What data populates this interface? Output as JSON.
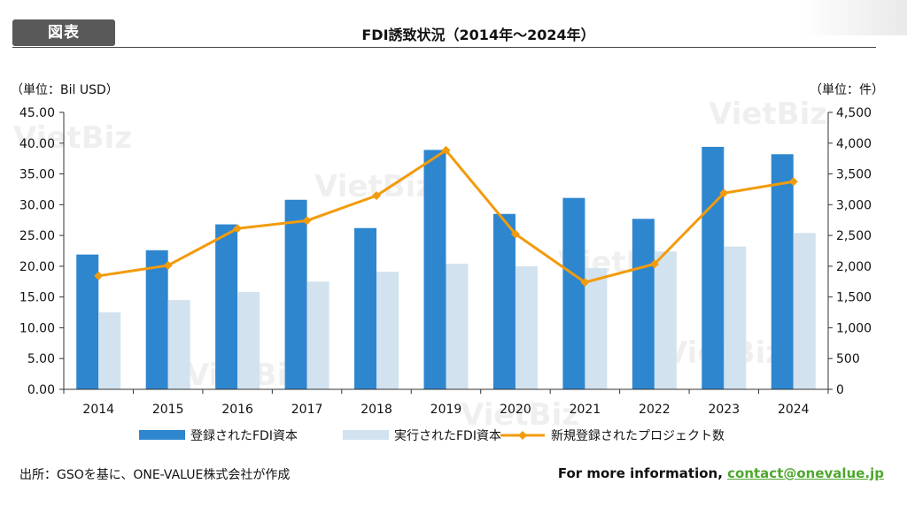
{
  "badge": "図表",
  "title": "FDI誘致状況（2014年～2024年）",
  "unit_left": "（単位：Bil USD）",
  "unit_right": "（単位：件）",
  "watermark": "VietBiz",
  "source": "出所：GSOを基に、ONE-VALUE株式会社が作成",
  "info_label": "For more information,",
  "info_link": "contact@onevalue.jp",
  "colors": {
    "registered": "#2e86cf",
    "implemented": "#d2e2ee",
    "projects": "#f29b0c"
  },
  "chart_data": {
    "type": "bar",
    "categories": [
      "2014",
      "2015",
      "2016",
      "2017",
      "2018",
      "2019",
      "2020",
      "2021",
      "2022",
      "2023",
      "2024"
    ],
    "series": [
      {
        "name": "登録されたFDI資本",
        "type": "bar",
        "axis": "left",
        "values": [
          21.9,
          22.6,
          26.8,
          30.8,
          26.2,
          38.9,
          28.5,
          31.1,
          27.7,
          39.4,
          38.2
        ]
      },
      {
        "name": "実行されたFDI資本",
        "type": "bar",
        "axis": "left",
        "values": [
          12.5,
          14.5,
          15.8,
          17.5,
          19.1,
          20.4,
          20.0,
          19.7,
          22.4,
          23.2,
          25.4
        ]
      },
      {
        "name": "新規登録されたプロジェクト数",
        "type": "line",
        "axis": "right",
        "values": [
          1843,
          2013,
          2613,
          2741,
          3147,
          3883,
          2523,
          1738,
          2036,
          3188,
          3375
        ]
      }
    ],
    "y_left": {
      "range": [
        0,
        45
      ],
      "ticks": [
        "0.00",
        "5.00",
        "10.00",
        "15.00",
        "20.00",
        "25.00",
        "30.00",
        "35.00",
        "40.00",
        "45.00"
      ]
    },
    "y_right": {
      "range": [
        0,
        4500
      ],
      "ticks": [
        "0",
        "500",
        "1,000",
        "1,500",
        "2,000",
        "2,500",
        "3,000",
        "3,500",
        "4,000",
        "4,500"
      ]
    },
    "grid": false,
    "legend_position": "bottom"
  }
}
